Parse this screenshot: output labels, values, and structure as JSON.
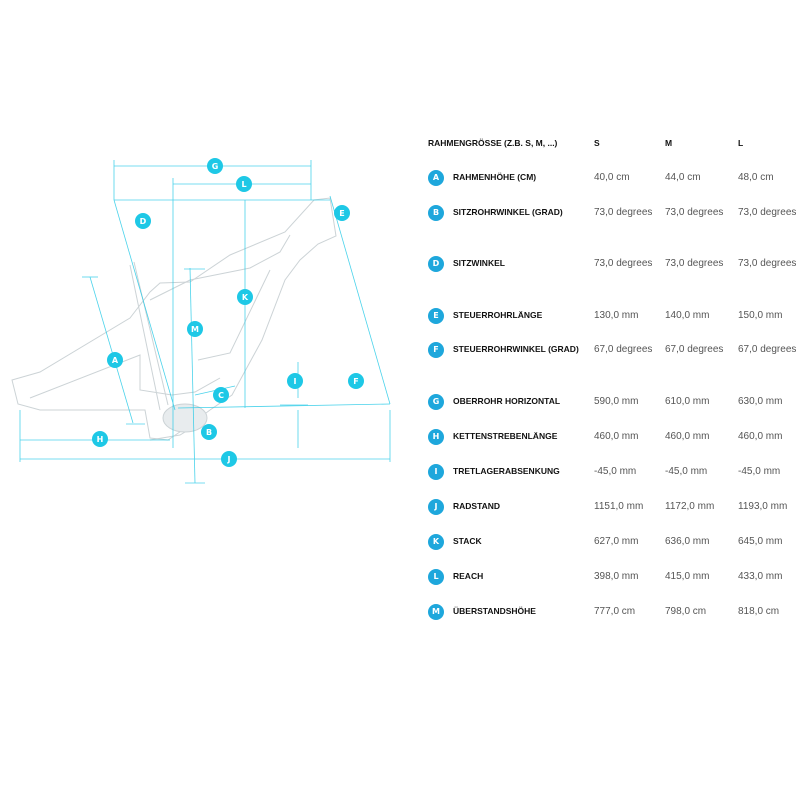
{
  "header": {
    "size_label": "RAHMENGRÖSSE (Z.B. S, M, ...)",
    "sizes": [
      "S",
      "M",
      "L"
    ]
  },
  "accent_color": "#1ea7dc",
  "diagram_color": "#1ec8e6",
  "rows": [
    {
      "badge": "A",
      "label": "RAHMENHÖHE (CM)",
      "values": [
        "40,0 cm",
        "44,0 cm",
        "48,0 cm"
      ]
    },
    {
      "badge": "B",
      "label": "SITZROHRWINKEL (GRAD)",
      "values": [
        "73,0 degrees",
        "73,0 degrees",
        "73,0 degrees"
      ]
    },
    {
      "badge": "D",
      "label": "SITZWINKEL",
      "values": [
        "73,0 degrees",
        "73,0 degrees",
        "73,0 degrees"
      ]
    },
    {
      "badge": "E",
      "label": "STEUERROHRLÄNGE",
      "values": [
        "130,0 mm",
        "140,0 mm",
        "150,0 mm"
      ]
    },
    {
      "badge": "F",
      "label": "STEUERROHRWINKEL (GRAD)",
      "values": [
        "67,0 degrees",
        "67,0 degrees",
        "67,0 degrees"
      ]
    },
    {
      "badge": "G",
      "label": "OBERROHR HORIZONTAL",
      "values": [
        "590,0 mm",
        "610,0 mm",
        "630,0 mm"
      ]
    },
    {
      "badge": "H",
      "label": "KETTENSTREBENLÄNGE",
      "values": [
        "460,0 mm",
        "460,0 mm",
        "460,0 mm"
      ]
    },
    {
      "badge": "I",
      "label": "TRETLAGERABSENKUNG",
      "values": [
        "-45,0 mm",
        "-45,0 mm",
        "-45,0 mm"
      ]
    },
    {
      "badge": "J",
      "label": "RADSTAND",
      "values": [
        "1151,0 mm",
        "1172,0 mm",
        "1193,0 mm"
      ]
    },
    {
      "badge": "K",
      "label": "STACK",
      "values": [
        "627,0 mm",
        "636,0 mm",
        "645,0 mm"
      ]
    },
    {
      "badge": "L",
      "label": "REACH",
      "values": [
        "398,0 mm",
        "415,0 mm",
        "433,0 mm"
      ]
    },
    {
      "badge": "M",
      "label": "ÜBERSTANDSHÖHE",
      "values": [
        "777,0 cm",
        "798,0 cm",
        "818,0 cm"
      ]
    }
  ],
  "diagram_badges": {
    "G": "G",
    "L": "L",
    "D": "D",
    "E": "E",
    "K": "K",
    "M": "M",
    "A": "A",
    "C": "C",
    "I": "I",
    "F": "F",
    "B": "B",
    "H": "H",
    "J": "J"
  }
}
